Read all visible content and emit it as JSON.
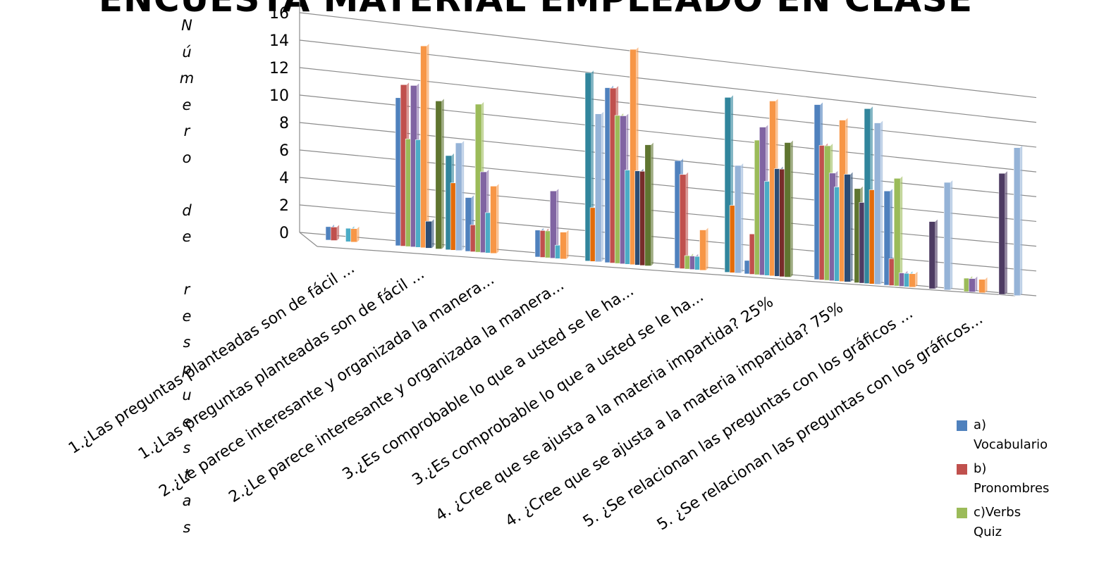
{
  "chart_data": {
    "type": "bar",
    "title": "ENCUESTA MATERIAL EMPLEADO EN CLASE",
    "ylabel": "Número de respuestas",
    "ylim": [
      0,
      16
    ],
    "yticks": [
      "0",
      "2",
      "4",
      "6",
      "8",
      "10",
      "12",
      "14",
      "16"
    ],
    "grid": true,
    "legend_position": "right",
    "categories": [
      "1.¿Las preguntas planteadas son de fácil ...",
      "1.¿Las preguntas planteadas son de fácil ...",
      "2.¿Le parece interesante y organizada la manera...",
      "2.¿Le parece interesante y organizada la manera...",
      "3.¿Es comprobable lo que a usted  se le ha...",
      "3.¿Es comprobable lo que a usted  se le ha...",
      "4. ¿Cree que se ajusta a la materia impartida? 25%",
      "4. ¿Cree que se ajusta a la materia impartida? 75%",
      "5. ¿Se relacionan las preguntas con los gráficos ...",
      "5. ¿Se relacionan las preguntas con los gráficos..."
    ],
    "series": [
      {
        "name": "a) Vocabulario",
        "color": "#4F81BD",
        "values": [
          1,
          11,
          4,
          2,
          13,
          8,
          1,
          13,
          7,
          0
        ]
      },
      {
        "name": "b) Pronombres",
        "color": "#C0504D",
        "values": [
          1,
          12,
          2,
          2,
          13,
          7,
          3,
          10,
          2,
          0
        ]
      },
      {
        "name": "c)Verbs Quiz",
        "color": "#9BBB59",
        "values": [
          0,
          8,
          11,
          2,
          11,
          1,
          10,
          10,
          8,
          1
        ]
      },
      {
        "name": "",
        "color": "#8064A2",
        "values": [
          0,
          12,
          6,
          5,
          11,
          1,
          11,
          8,
          1,
          1
        ]
      },
      {
        "name": "",
        "color": "#4BACC6",
        "values": [
          1,
          8,
          3,
          1,
          7,
          1,
          7,
          7,
          1,
          0
        ]
      },
      {
        "name": "",
        "color": "#F79646",
        "values": [
          1,
          15,
          5,
          2,
          16,
          3,
          13,
          12,
          1,
          1
        ]
      },
      {
        "name": "",
        "color": "#2C4D75",
        "values": [
          0,
          2,
          0,
          0,
          7,
          0,
          8,
          8,
          0,
          0
        ]
      },
      {
        "name": "",
        "color": "#772C2A",
        "values": [
          0,
          0,
          0,
          0,
          7,
          0,
          8,
          0,
          0,
          0
        ]
      },
      {
        "name": "",
        "color": "#5F7530",
        "values": [
          0,
          11,
          0,
          0,
          9,
          0,
          10,
          7,
          0,
          0
        ]
      },
      {
        "name": "",
        "color": "#4D3B62",
        "values": [
          0,
          0,
          0,
          0,
          0,
          0,
          0,
          6,
          5,
          9
        ]
      },
      {
        "name": "",
        "color": "#31859C",
        "values": [
          0,
          7,
          0,
          14,
          0,
          13,
          0,
          13,
          0,
          0
        ]
      },
      {
        "name": "",
        "color": "#E46C0A",
        "values": [
          0,
          5,
          0,
          4,
          0,
          5,
          0,
          7,
          0,
          0
        ]
      },
      {
        "name": "",
        "color": "#95B3D7",
        "values": [
          0,
          8,
          0,
          11,
          0,
          8,
          0,
          12,
          8,
          11
        ]
      }
    ]
  }
}
